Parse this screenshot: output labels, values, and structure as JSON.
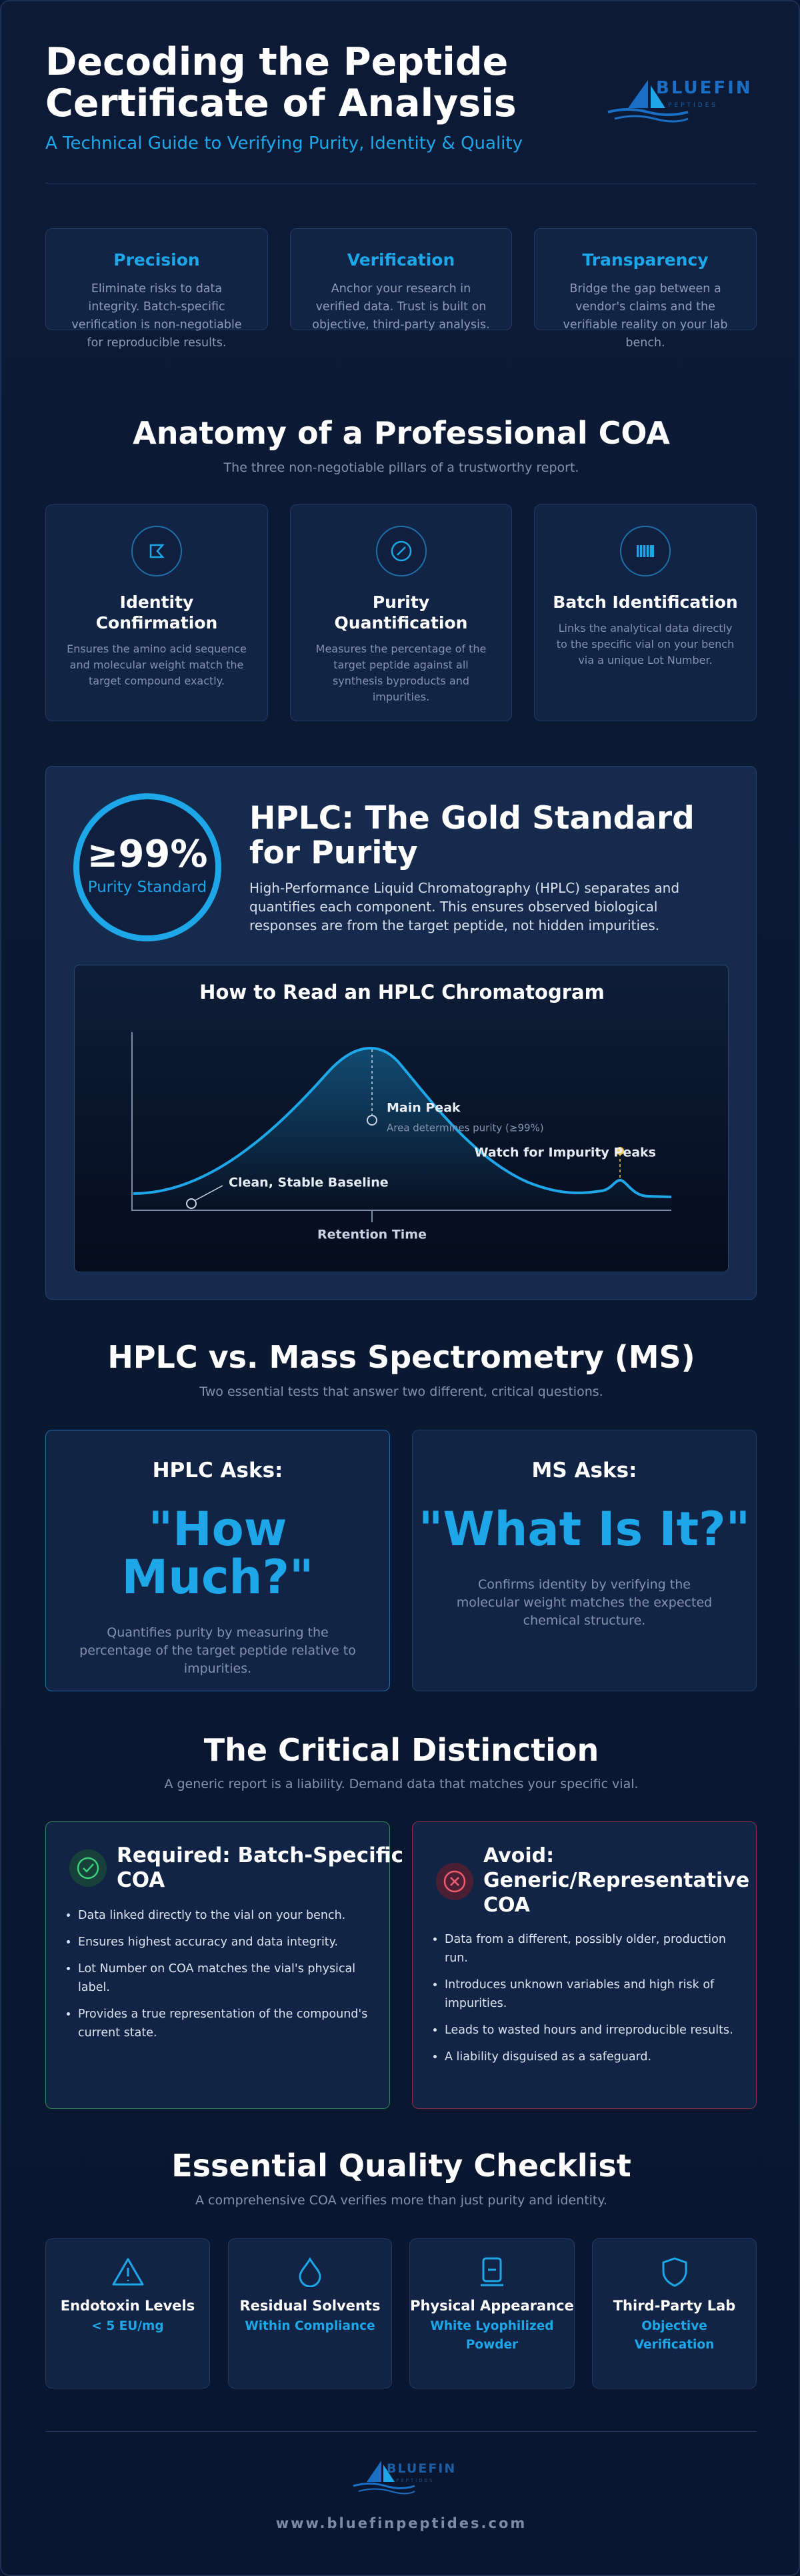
{
  "header": {
    "title": "Decoding the Peptide Certificate of Analysis",
    "subtitle": "A Technical Guide to Verifying Purity, Identity & Quality",
    "logo_text": "BLUEFIN",
    "logo_subtext": "PEPTIDES"
  },
  "pillars": [
    {
      "title": "Precision",
      "text": "Eliminate risks to data integrity. Batch-specific verification is non-negotiable for reproducible results."
    },
    {
      "title": "Verification",
      "text": "Anchor your research in verified data. Trust is built on objective, third-party analysis."
    },
    {
      "title": "Transparency",
      "text": "Bridge the gap between a vendor's claims and the verifiable reality on your lab bench."
    }
  ],
  "anatomy": {
    "title": "Anatomy of a Professional COA",
    "subtitle": "The three non-negotiable pillars of a trustworthy report.",
    "cards": [
      {
        "title": "Identity Confirmation",
        "text": "Ensures the amino acid sequence and molecular weight match the target compound exactly."
      },
      {
        "title": "Purity Quantification",
        "text": "Measures the percentage of the target peptide against all synthesis byproducts and impurities."
      },
      {
        "title": "Batch Identification",
        "text": "Links the analytical data directly to the specific vial on your bench via a unique Lot Number."
      }
    ]
  },
  "hplc": {
    "badge_value": "≥99%",
    "badge_label": "Purity Standard",
    "title": "HPLC: The Gold Standard for Purity",
    "description": "High-Performance Liquid Chromatography (HPLC) separates and quantifies each component. This ensures observed biological responses are from the target peptide, not hidden impurities.",
    "chart": {
      "title": "How to Read an HPLC Chromatogram",
      "main_peak": "Main Peak",
      "main_peak_note": "Area determines purity (≥99%)",
      "impurity": "Watch for Impurity Peaks",
      "baseline": "Clean, Stable Baseline",
      "x_label": "Retention Time"
    }
  },
  "comparison": {
    "title": "HPLC vs. Mass Spectrometry (MS)",
    "subtitle": "Two essential tests that answer two different, critical questions.",
    "cards": [
      {
        "question": "HPLC Asks:",
        "answer": "\"How Much?\"",
        "text": "Quantifies purity by measuring the percentage of the target peptide relative to impurities."
      },
      {
        "question": "MS Asks:",
        "answer": "\"What Is It?\"",
        "text": "Confirms identity by verifying the molecular weight matches the expected chemical structure."
      }
    ]
  },
  "distinction": {
    "title": "The Critical Distinction",
    "subtitle": "A generic report is a liability. Demand data that matches your specific vial.",
    "required": {
      "title": "Required: Batch-Specific COA",
      "items": [
        "Data linked directly to the vial on your bench.",
        "Ensures highest accuracy and data integrity.",
        "Lot Number on COA matches the vial's physical label.",
        "Provides a true representation of the compound's current state."
      ]
    },
    "avoid": {
      "title": "Avoid: Generic/Representative COA",
      "items": [
        "Data from a different, possibly older, production run.",
        "Introduces unknown variables and high risk of impurities.",
        "Leads to wasted hours and irreproducible results.",
        "A liability disguised as a safeguard."
      ]
    }
  },
  "checklist": {
    "title": "Essential Quality Checklist",
    "subtitle": "A comprehensive COA verifies more than just purity and identity.",
    "items": [
      {
        "title": "Endotoxin Levels",
        "value": "< 5 EU/mg"
      },
      {
        "title": "Residual Solvents",
        "value": "Within Compliance"
      },
      {
        "title": "Physical Appearance",
        "value": "White Lyophilized Powder"
      },
      {
        "title": "Third-Party Lab",
        "value": "Objective Verification"
      }
    ]
  },
  "footer": {
    "logo_text": "BLUEFIN",
    "logo_subtext": "PEPTIDES",
    "url": "www.bluefinpeptides.com"
  }
}
